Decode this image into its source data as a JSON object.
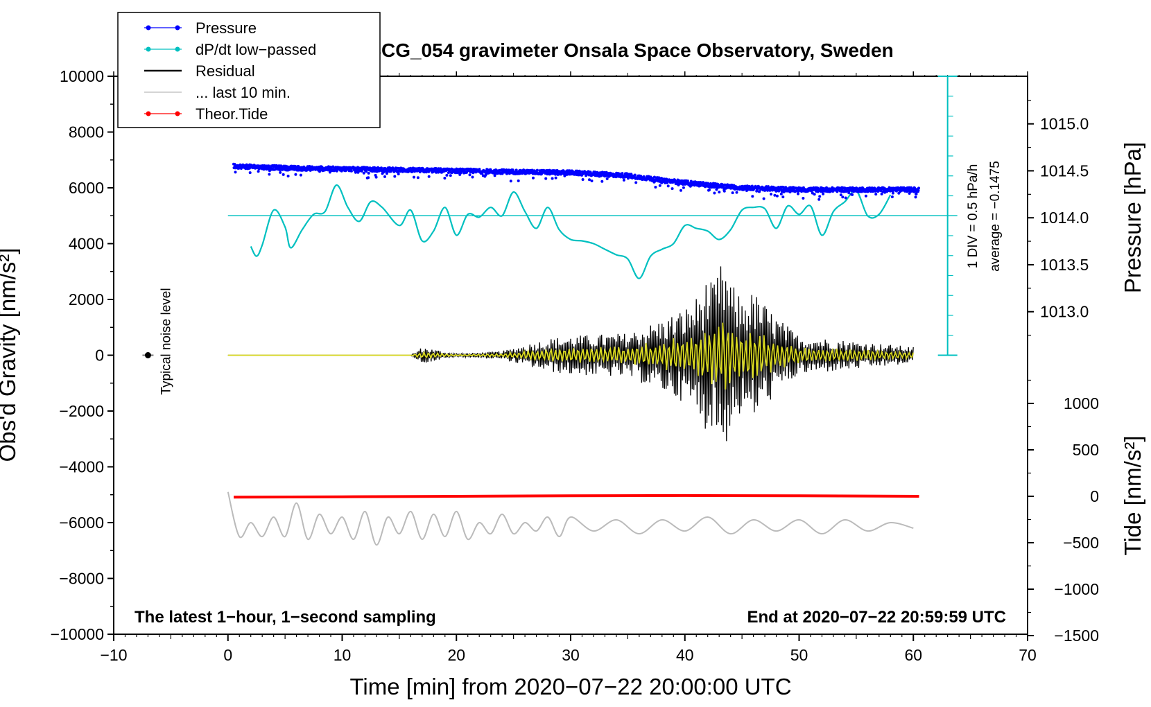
{
  "chart_data": {
    "type": "line",
    "title": "SCG_054 gravimeter Onsala Space Observatory, Sweden",
    "xlabel": "Time [min] from 2020−07−22 20:00:00 UTC",
    "xlim": [
      -10,
      70
    ],
    "x_ticks": [
      -10,
      0,
      10,
      20,
      30,
      40,
      50,
      60,
      70
    ],
    "x_tick_labels": [
      "−10",
      "0",
      "10",
      "20",
      "30",
      "40",
      "50",
      "60",
      "70"
    ],
    "left_axis": {
      "label": "Obs'd Gravity [nm/s²]",
      "ylim": [
        -10000,
        10000
      ],
      "ticks": [
        -10000,
        -8000,
        -6000,
        -4000,
        -2000,
        0,
        2000,
        4000,
        6000,
        8000,
        10000
      ],
      "tick_labels": [
        "−10000",
        "−8000",
        "−6000",
        "−4000",
        "−2000",
        "0",
        "2000",
        "4000",
        "6000",
        "8000",
        "10000"
      ]
    },
    "pressure_axis": {
      "label": "Pressure [hPa]",
      "ticks": [
        1013.0,
        1013.5,
        1014.0,
        1014.5,
        1015.0
      ],
      "tick_labels": [
        "1013.0",
        "1013.5",
        "1014.0",
        "1014.5",
        "1015.0"
      ]
    },
    "tide_axis": {
      "label": "Tide [nm/s²]",
      "ticks": [
        -1500,
        -1000,
        -500,
        0,
        500,
        1000
      ],
      "tick_labels": [
        "−1500",
        "−1000",
        "−500",
        "0",
        "500",
        "1000"
      ]
    },
    "dpdt_scale": {
      "div_label": "1 DIV = 0.5 hPa/h",
      "average_label": "average = −0.1475",
      "baseline_gravity": 5000
    },
    "series": [
      {
        "name": "Pressure",
        "axis": "pressure",
        "color": "#0000ff",
        "x": [
          0.5,
          5,
          10,
          15,
          20,
          25,
          30,
          35,
          38,
          42,
          45,
          50,
          55,
          60.5
        ],
        "y": [
          1014.55,
          1014.53,
          1014.52,
          1014.51,
          1014.5,
          1014.49,
          1014.48,
          1014.45,
          1014.4,
          1014.35,
          1014.32,
          1014.3,
          1014.3,
          1014.3
        ]
      },
      {
        "name": "dP/dt low−passed",
        "axis": "gravity",
        "color": "#00c0c0",
        "x": [
          2,
          2.5,
          3,
          4,
          5,
          5.5,
          6.5,
          7.5,
          8.5,
          9.5,
          10.5,
          11.5,
          12.5,
          13.5,
          15,
          16,
          17,
          18,
          19,
          20,
          21,
          22,
          23,
          24,
          25,
          26,
          27,
          28,
          29,
          30,
          31,
          32,
          33,
          34,
          35,
          36,
          37,
          38,
          39,
          40,
          41,
          42,
          43,
          44,
          45,
          46,
          47,
          48,
          49,
          50,
          51,
          52,
          53,
          54,
          55,
          56,
          57,
          58
        ],
        "y": [
          3900,
          3550,
          3950,
          5200,
          4600,
          3850,
          4500,
          5050,
          5150,
          6100,
          5300,
          4800,
          5500,
          5300,
          4650,
          5200,
          4100,
          4450,
          5300,
          4300,
          5050,
          4950,
          5300,
          5000,
          5850,
          5150,
          4550,
          5300,
          4500,
          4150,
          4100,
          4000,
          3800,
          3600,
          3450,
          2750,
          3550,
          3800,
          4000,
          4650,
          4550,
          4450,
          4150,
          4500,
          5200,
          5300,
          5250,
          4550,
          5350,
          5050,
          5350,
          4300,
          5150,
          5500,
          5900,
          5000,
          5050,
          5750
        ]
      },
      {
        "name": "Residual",
        "axis": "gravity",
        "color": "#000000",
        "x": [
          0,
          16,
          17,
          20,
          24,
          28,
          30,
          35,
          38,
          40,
          41,
          42,
          42.5,
          43,
          43.5,
          44,
          45,
          46,
          48,
          50,
          55,
          60
        ],
        "y": [
          0,
          0,
          300,
          50,
          150,
          600,
          700,
          800,
          1300,
          1700,
          2100,
          2800,
          -2500,
          3200,
          -3400,
          2600,
          2100,
          -2300,
          1400,
          700,
          500,
          300
        ]
      },
      {
        "name": "... last 10 min.",
        "axis": "gravity",
        "color": "#bbbbbb",
        "x": [
          0,
          1,
          2,
          3,
          4,
          5,
          6,
          7,
          8,
          9,
          10,
          11,
          12,
          13,
          14,
          15,
          16,
          17,
          18,
          19,
          20,
          21,
          22,
          23,
          24,
          25,
          26,
          27,
          28,
          29,
          30,
          32,
          34,
          36,
          38,
          40,
          42,
          44,
          46,
          48,
          50,
          52,
          54,
          56,
          58,
          60
        ],
        "y": [
          -4900,
          -6500,
          -6000,
          -6500,
          -5800,
          -6500,
          -5300,
          -6600,
          -5700,
          -6400,
          -5800,
          -6600,
          -5600,
          -6800,
          -5800,
          -6400,
          -5600,
          -6600,
          -5700,
          -6500,
          -5600,
          -6600,
          -6000,
          -6400,
          -5700,
          -6400,
          -6000,
          -6300,
          -5800,
          -6500,
          -5800,
          -6300,
          -5900,
          -6400,
          -5900,
          -6300,
          -5800,
          -6400,
          -5900,
          -6300,
          -5900,
          -6400,
          -5900,
          -6300,
          -6000,
          -6200
        ]
      },
      {
        "name": "Theor.Tide",
        "axis": "tide",
        "color": "#ff0000",
        "x": [
          0.5,
          10,
          20,
          30,
          40,
          50,
          60.5
        ],
        "y": [
          -10,
          -5,
          0,
          5,
          8,
          5,
          0
        ]
      }
    ],
    "typical_noise_level": {
      "label": "Typical noise level",
      "x": -7,
      "y": 0
    },
    "annotations": [
      "The latest 1−hour, 1−second sampling",
      "End at 2020−07−22 20:59:59 UTC"
    ],
    "legend_position": "top-left"
  },
  "colors": {
    "pressure": "#0000ff",
    "dpdt": "#00c0c0",
    "residual": "#000000",
    "last10": "#bbbbbb",
    "tide": "#ff0000",
    "filtered": "#d8d820"
  }
}
